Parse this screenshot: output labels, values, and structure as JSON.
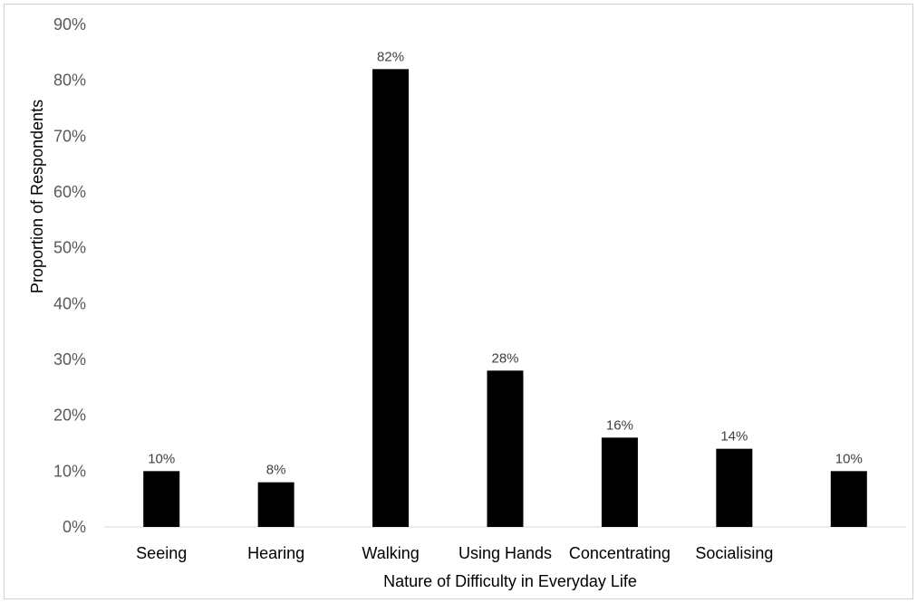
{
  "chart_data": {
    "type": "bar",
    "categories": [
      "Seeing",
      "Hearing",
      "Walking",
      "Using Hands",
      "Concentrating",
      "Socialising",
      ""
    ],
    "values": [
      10,
      8,
      82,
      28,
      16,
      14,
      10
    ],
    "data_labels": [
      "10%",
      "8%",
      "82%",
      "28%",
      "16%",
      "14%",
      "10%"
    ],
    "ylim": [
      0,
      90
    ],
    "yticks": [
      0,
      10,
      20,
      30,
      40,
      50,
      60,
      70,
      80,
      90
    ],
    "ytick_labels": [
      "0%",
      "10%",
      "20%",
      "30%",
      "40%",
      "50%",
      "60%",
      "70%",
      "80%",
      "90%"
    ],
    "xlabel": "Nature of Difficulty in Everyday Life",
    "ylabel": "Proportion of Respondents",
    "grid": false,
    "bar_color": "#000000"
  }
}
